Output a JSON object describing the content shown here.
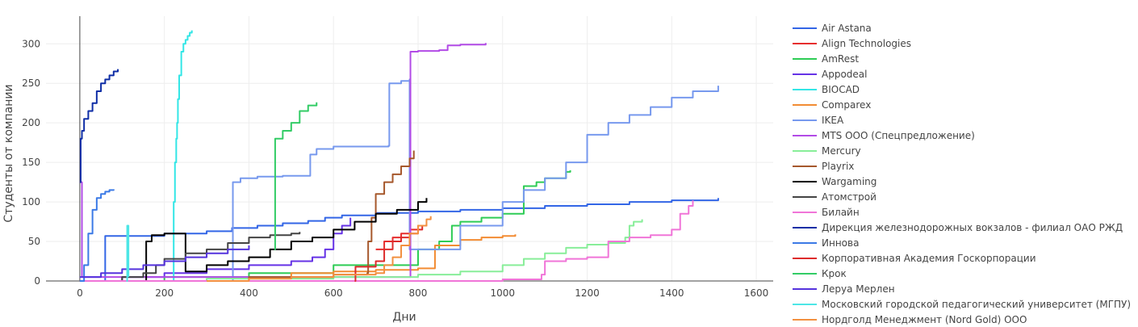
{
  "chart_data": {
    "type": "line",
    "xlabel": "Дни",
    "ylabel": "Студенты от компании",
    "xlim": [
      -80,
      1640
    ],
    "ylim": [
      0,
      335
    ],
    "x_ticks": [
      0,
      200,
      400,
      600,
      800,
      1000,
      1200,
      1400,
      1600
    ],
    "y_ticks": [
      0,
      50,
      100,
      150,
      200,
      250,
      300
    ],
    "x_tick_labels": [
      "0",
      "200",
      "400",
      "600",
      "800",
      "1000",
      "1200",
      "1400",
      "1600"
    ],
    "y_tick_labels": [
      "0",
      "50",
      "100",
      "150",
      "200",
      "250",
      "300"
    ],
    "grid": true,
    "legend_position": "right",
    "series": [
      {
        "name": "Air Astana",
        "color": "#3366e6",
        "step": true,
        "x": [
          0,
          60,
          60,
          200,
          300,
          360,
          420,
          480,
          540,
          580,
          620,
          700,
          800,
          900,
          1000,
          1100,
          1200,
          1300,
          1400,
          1510
        ],
        "y": [
          0,
          0,
          57,
          60,
          63,
          67,
          70,
          73,
          76,
          80,
          83,
          86,
          88,
          90,
          92,
          95,
          97,
          100,
          102,
          105
        ]
      },
      {
        "name": "Align Technologies",
        "color": "#e62e2e",
        "step": true,
        "x": [
          700,
          720,
          740,
          760,
          780,
          800,
          820
        ],
        "y": [
          40,
          50,
          55,
          60,
          65,
          70,
          72
        ]
      },
      {
        "name": "AmRest",
        "color": "#2ecc55",
        "step": true,
        "x": [
          0,
          200,
          400,
          600,
          800,
          850,
          880,
          900,
          950,
          1000,
          1050,
          1050,
          1080,
          1100,
          1150,
          1160
        ],
        "y": [
          0,
          5,
          10,
          20,
          40,
          50,
          70,
          75,
          80,
          85,
          88,
          120,
          125,
          130,
          138,
          140
        ]
      },
      {
        "name": "Appodeal",
        "color": "#6633e6",
        "step": true,
        "x": [
          0,
          100,
          200,
          300,
          400,
          500,
          550,
          580,
          600,
          620,
          640
        ],
        "y": [
          0,
          5,
          10,
          15,
          20,
          25,
          30,
          40,
          60,
          70,
          80
        ]
      },
      {
        "name": "BIOCAD",
        "color": "#33e6e6",
        "step": true,
        "x": [
          220,
          222,
          225,
          228,
          230,
          232,
          235,
          240,
          245,
          250,
          255,
          260,
          265
        ],
        "y": [
          0,
          100,
          150,
          180,
          200,
          230,
          260,
          290,
          300,
          305,
          310,
          314,
          317
        ]
      },
      {
        "name": "Comparex",
        "color": "#f28c33",
        "step": true,
        "x": [
          400,
          500,
          600,
          700,
          800,
          840,
          840,
          900,
          950,
          1000,
          1030
        ],
        "y": [
          5,
          10,
          12,
          14,
          16,
          18,
          45,
          52,
          55,
          57,
          59
        ]
      },
      {
        "name": "IKEA",
        "color": "#7799ee",
        "step": true,
        "x": [
          0,
          360,
          362,
          380,
          420,
          480,
          540,
          545,
          560,
          600,
          650,
          700,
          730,
          732,
          760,
          780,
          780,
          900,
          1000,
          1050,
          1100,
          1150,
          1200,
          1250,
          1300,
          1350,
          1400,
          1450,
          1510
        ],
        "y": [
          0,
          0,
          125,
          130,
          132,
          133,
          133,
          160,
          167,
          170,
          170,
          170,
          171,
          250,
          253,
          255,
          40,
          70,
          100,
          115,
          130,
          150,
          185,
          200,
          210,
          220,
          232,
          240,
          247
        ]
      },
      {
        "name": "MTS OOO (Спецпредложение)",
        "color": "#b24be6",
        "step": true,
        "x": [
          0,
          5,
          5,
          780,
          782,
          800,
          850,
          870,
          900,
          960
        ],
        "y": [
          125,
          125,
          5,
          5,
          290,
          291,
          292,
          298,
          299,
          301
        ]
      },
      {
        "name": "Mercury",
        "color": "#88ee99",
        "step": true,
        "x": [
          0,
          300,
          600,
          800,
          900,
          1000,
          1050,
          1100,
          1150,
          1200,
          1250,
          1290,
          1300,
          1310,
          1330
        ],
        "y": [
          0,
          3,
          5,
          8,
          12,
          20,
          28,
          35,
          42,
          46,
          48,
          55,
          70,
          75,
          78
        ]
      },
      {
        "name": "Playrix",
        "color": "#a6582c",
        "step": true,
        "x": [
          0,
          400,
          600,
          680,
          682,
          690,
          700,
          720,
          740,
          760,
          780,
          790
        ],
        "y": [
          0,
          5,
          8,
          10,
          50,
          80,
          110,
          125,
          135,
          145,
          155,
          165
        ]
      },
      {
        "name": "Wargaming",
        "color": "#000000",
        "step": true,
        "x": [
          0,
          155,
          157,
          170,
          200,
          250,
          300,
          350,
          400,
          450,
          500,
          550,
          600,
          650,
          700,
          750,
          800,
          820
        ],
        "y": [
          0,
          0,
          50,
          58,
          60,
          12,
          20,
          25,
          30,
          40,
          50,
          55,
          65,
          75,
          85,
          90,
          100,
          105
        ]
      },
      {
        "name": "Атомстрой",
        "color": "#444444",
        "step": true,
        "x": [
          0,
          100,
          150,
          180,
          200,
          250,
          300,
          350,
          400,
          450,
          500,
          520
        ],
        "y": [
          0,
          5,
          10,
          20,
          28,
          35,
          40,
          48,
          55,
          58,
          60,
          62
        ]
      },
      {
        "name": "Билайн",
        "color": "#f075d8",
        "step": true,
        "x": [
          0,
          1000,
          1090,
          1092,
          1100,
          1150,
          1200,
          1250,
          1300,
          1350,
          1400,
          1420,
          1440,
          1450
        ],
        "y": [
          0,
          2,
          2,
          8,
          25,
          28,
          30,
          50,
          55,
          58,
          65,
          85,
          95,
          102
        ]
      },
      {
        "name": "Дирекция железнодорожных вокзалов - филиал ОАО РЖД",
        "color": "#0f2ea6",
        "step": true,
        "x": [
          0,
          2,
          5,
          10,
          20,
          30,
          40,
          50,
          60,
          70,
          80,
          90
        ],
        "y": [
          125,
          180,
          190,
          205,
          215,
          225,
          240,
          250,
          255,
          260,
          265,
          268
        ]
      },
      {
        "name": "Иннова",
        "color": "#3b7ae6",
        "step": true,
        "x": [
          0,
          10,
          20,
          30,
          40,
          50,
          60,
          70,
          80
        ],
        "y": [
          0,
          20,
          60,
          90,
          105,
          110,
          113,
          115,
          116
        ]
      },
      {
        "name": "Корпоративная Академия Госкорпорации",
        "color": "#dd2b2b",
        "step": true,
        "x": [
          650,
          652,
          700,
          720,
          740,
          760,
          780,
          800,
          810
        ],
        "y": [
          0,
          18,
          25,
          40,
          50,
          55,
          60,
          65,
          70
        ]
      },
      {
        "name": "Крок",
        "color": "#33cc66",
        "step": true,
        "x": [
          460,
          462,
          480,
          500,
          520,
          540,
          560
        ],
        "y": [
          40,
          180,
          190,
          200,
          215,
          222,
          226
        ]
      },
      {
        "name": "Леруа Мерлен",
        "color": "#5533dd",
        "step": true,
        "x": [
          0,
          50,
          100,
          150,
          200,
          250,
          300,
          350,
          400
        ],
        "y": [
          5,
          10,
          15,
          20,
          25,
          30,
          35,
          40,
          45
        ]
      },
      {
        "name": "Московский городской педагогический университет (МГПУ)",
        "color": "#4de6e6",
        "step": true,
        "x": [
          110,
          112,
          115
        ],
        "y": [
          0,
          70,
          5
        ]
      },
      {
        "name": "Нордголд Менеджмент (Nord Gold) ООО",
        "color": "#f29040",
        "step": true,
        "x": [
          300,
          400,
          500,
          600,
          700,
          720,
          740,
          760,
          780,
          800,
          820,
          830
        ],
        "y": [
          0,
          3,
          5,
          8,
          10,
          20,
          30,
          45,
          60,
          70,
          78,
          82
        ]
      }
    ]
  }
}
